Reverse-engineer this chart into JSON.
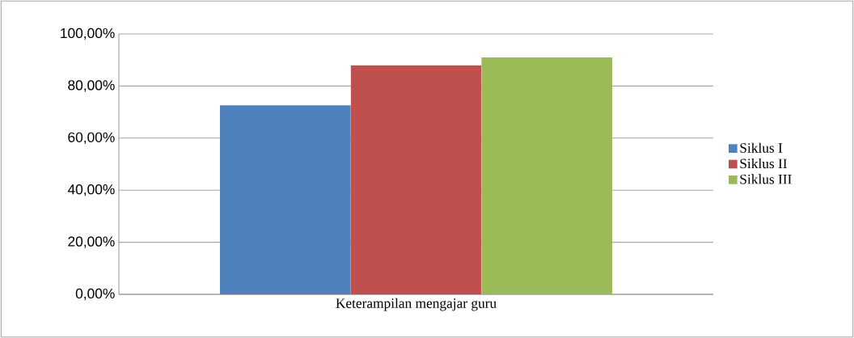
{
  "chart_data": {
    "type": "bar",
    "categories": [
      "Keterampilan mengajar guru"
    ],
    "series": [
      {
        "name": "Siklus I",
        "color": "#4f81bd",
        "values": [
          72.6
        ]
      },
      {
        "name": "Siklus II",
        "color": "#c0504d",
        "values": [
          88.0
        ]
      },
      {
        "name": "Siklus III",
        "color": "#9bbb59",
        "values": [
          91.0
        ]
      }
    ],
    "ylim": [
      0,
      100
    ],
    "yticks": [
      {
        "value": 0,
        "label": "0,00%"
      },
      {
        "value": 20,
        "label": "20,00%"
      },
      {
        "value": 40,
        "label": "40,00%"
      },
      {
        "value": 60,
        "label": "60,00%"
      },
      {
        "value": 80,
        "label": "80,00%"
      },
      {
        "value": 100,
        "label": "100,00%"
      }
    ],
    "grid": "y",
    "legend": "right"
  }
}
